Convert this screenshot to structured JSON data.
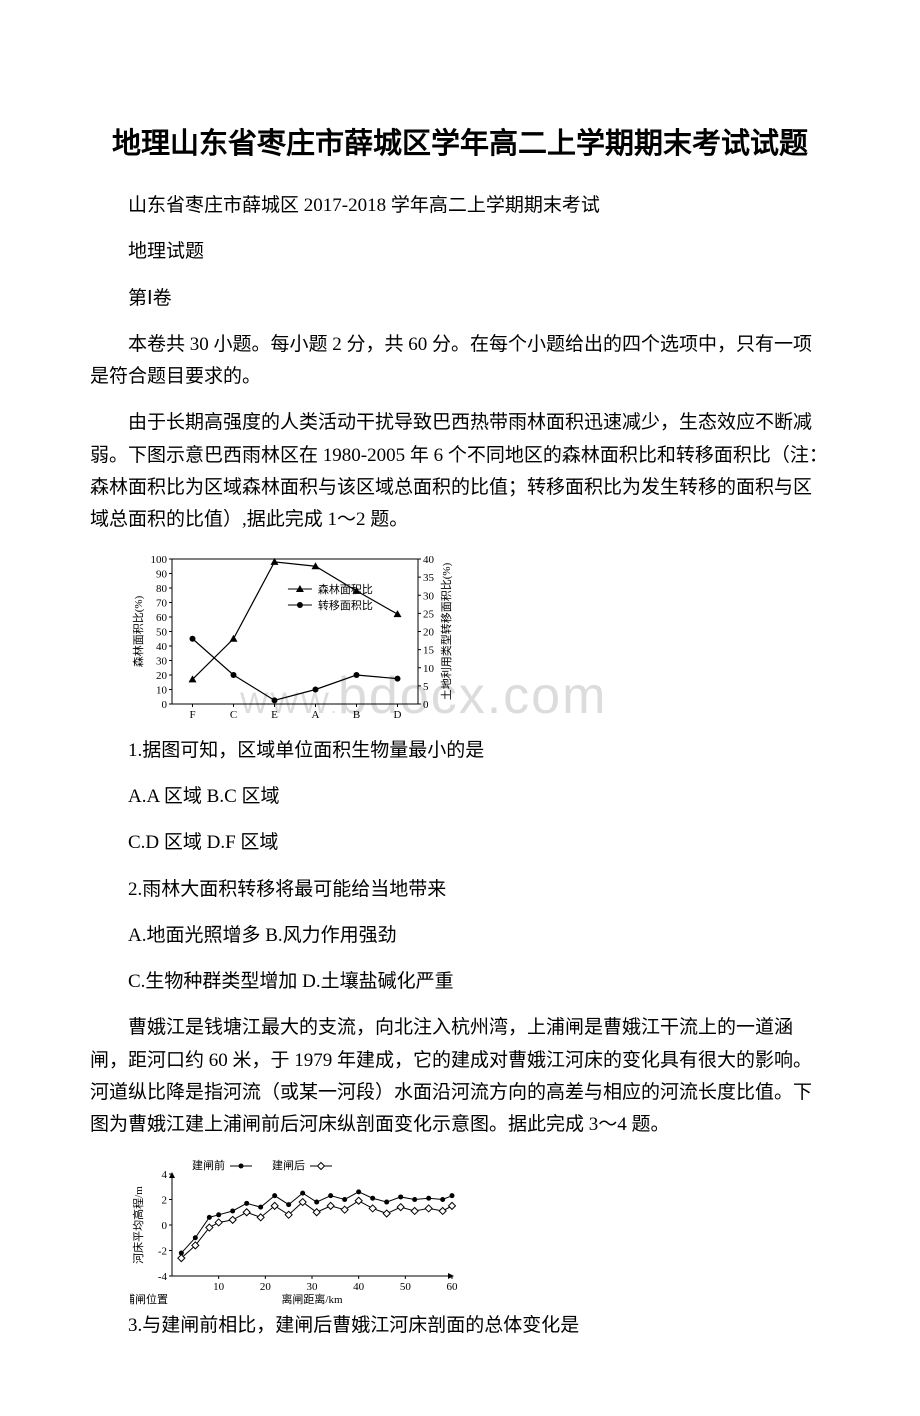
{
  "title": "地理山东省枣庄市薛城区学年高二上学期期末考试试题",
  "p1": "山东省枣庄市薛城区 2017-2018 学年高二上学期期末考试",
  "p2": "地理试题",
  "p3": "第Ⅰ卷",
  "p4": "本卷共 30 小题。每小题 2 分，共 60 分。在每个小题给出的四个选项中，只有一项是符合题目要求的。",
  "p5": "由于长期高强度的人类活动干扰导致巴西热带雨林面积迅速减少，生态效应不断减弱。下图示意巴西雨林区在 1980-2005 年 6 个不同地区的森林面积比和转移面积比（注：森林面积比为区域森林面积与该区域总面积的比值；转移面积比为发生转移的面积与区域总面积的比值）,据此完成 1～2 题。",
  "chart1": {
    "type": "line",
    "categories": [
      "F",
      "C",
      "E",
      "A",
      "B",
      "D"
    ],
    "series": [
      {
        "name": "森林面积比",
        "marker": "triangle",
        "values": [
          17,
          45,
          98,
          95,
          78,
          62
        ],
        "axis": "left"
      },
      {
        "name": "转移面积比",
        "marker": "circle",
        "values": [
          18,
          8,
          1,
          4,
          8,
          7
        ],
        "axis": "right"
      }
    ],
    "left_axis": {
      "label": "森林面积比(%)",
      "min": 0,
      "max": 100,
      "step": 10
    },
    "right_axis": {
      "label": "土地利用类型转移面积比(%)",
      "min": 0,
      "max": 40,
      "step": 5
    },
    "line_color": "#000000",
    "bg": "#ffffff",
    "font_size": 11
  },
  "q1": "1.据图可知，区域单位面积生物量最小的是",
  "q1a": "A.A 区域  B.C 区域",
  "q1b": "C.D 区域  D.F 区域",
  "q2": "2.雨林大面积转移将最可能给当地带来",
  "q2a": "A.地面光照增多  B.风力作用强劲",
  "q2b": "C.生物种群类型增加  D.土壤盐碱化严重",
  "p6": "曹娥江是钱塘江最大的支流，向北注入杭州湾，上浦闸是曹娥江干流上的一道涵闸，距河口约 60 米，于 1979 年建成，它的建成对曹娥江河床的变化具有很大的影响。河道纵比降是指河流（或某一河段）水面沿河流方向的高差与相应的河流长度比值。下图为曹娥江建上浦闸前后河床纵剖面变化示意图。据此完成 3～4 题。",
  "chart2": {
    "type": "line",
    "x": {
      "label": "离闸距离/km",
      "min": 0,
      "max": 60,
      "ticks": [
        10,
        20,
        30,
        40,
        50,
        60
      ],
      "origin_label": "上浦闸位置"
    },
    "y": {
      "label": "河床平均高程/m",
      "min": -4,
      "max": 4,
      "ticks": [
        -4,
        -2,
        0,
        2,
        4
      ]
    },
    "series": [
      {
        "name": "建闸前",
        "marker": "filled-circle",
        "points": [
          [
            2,
            -2.2
          ],
          [
            5,
            -1.0
          ],
          [
            8,
            0.6
          ],
          [
            10,
            0.8
          ],
          [
            13,
            1.1
          ],
          [
            16,
            1.7
          ],
          [
            19,
            1.4
          ],
          [
            22,
            2.3
          ],
          [
            25,
            1.6
          ],
          [
            28,
            2.5
          ],
          [
            31,
            1.8
          ],
          [
            34,
            2.3
          ],
          [
            37,
            2.0
          ],
          [
            40,
            2.6
          ],
          [
            43,
            2.1
          ],
          [
            46,
            1.8
          ],
          [
            49,
            2.2
          ],
          [
            52,
            2.0
          ],
          [
            55,
            2.1
          ],
          [
            58,
            2.0
          ],
          [
            60,
            2.3
          ]
        ]
      },
      {
        "name": "建闸后",
        "marker": "open-diamond",
        "points": [
          [
            2,
            -2.6
          ],
          [
            5,
            -1.6
          ],
          [
            8,
            -0.2
          ],
          [
            10,
            0.2
          ],
          [
            13,
            0.4
          ],
          [
            16,
            1.0
          ],
          [
            19,
            0.6
          ],
          [
            22,
            1.5
          ],
          [
            25,
            0.8
          ],
          [
            28,
            1.8
          ],
          [
            31,
            1.0
          ],
          [
            34,
            1.5
          ],
          [
            37,
            1.2
          ],
          [
            40,
            1.9
          ],
          [
            43,
            1.3
          ],
          [
            46,
            0.9
          ],
          [
            49,
            1.4
          ],
          [
            52,
            1.1
          ],
          [
            55,
            1.3
          ],
          [
            58,
            1.1
          ],
          [
            60,
            1.5
          ]
        ]
      }
    ],
    "line_color": "#000000",
    "bg": "#ffffff",
    "font_size": 11
  },
  "q3": "3.与建闸前相比，建闸后曹娥江河床剖面的总体变化是",
  "watermark1": "bdocx.com",
  "watermark1_prefix": "WWW"
}
